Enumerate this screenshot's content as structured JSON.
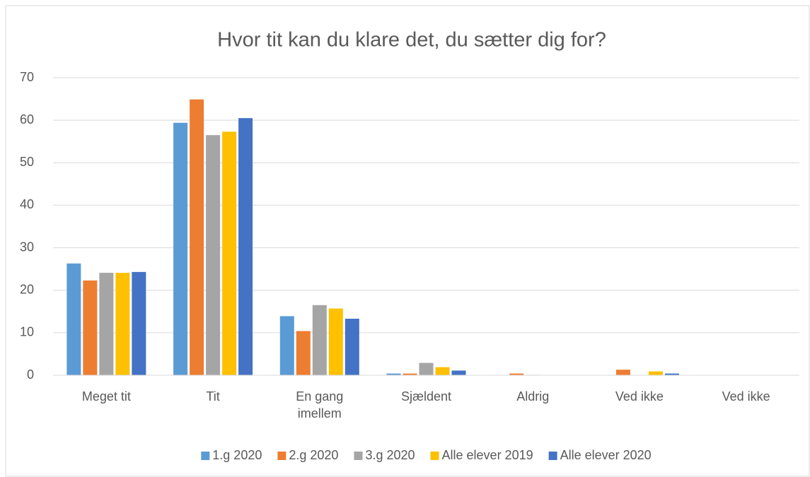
{
  "chart_data": {
    "type": "bar",
    "title": "Hvor tit kan du klare det, du sætter dig for?",
    "categories": [
      "Meget tit",
      "Tit",
      "En gang imellem",
      "Sjældent",
      "Aldrig",
      "Ved ikke",
      "Ved ikke"
    ],
    "series": [
      {
        "name": "1.g 2020",
        "color": "#5b9bd5",
        "values": [
          26.3,
          59.4,
          13.9,
          0.4,
          0,
          0,
          0
        ]
      },
      {
        "name": "2.g 2020",
        "color": "#ed7d31",
        "values": [
          22.3,
          64.9,
          10.4,
          0.4,
          0.4,
          1.3,
          0
        ]
      },
      {
        "name": "3.g 2020",
        "color": "#a5a5a5",
        "values": [
          24.1,
          56.5,
          16.5,
          2.9,
          0.1,
          0,
          0
        ]
      },
      {
        "name": "Alle elever 2019",
        "color": "#ffc000",
        "values": [
          24.1,
          57.3,
          15.7,
          1.9,
          0,
          0.9,
          0
        ]
      },
      {
        "name": "Alle elever 2020",
        "color": "#4472c4",
        "values": [
          24.3,
          60.5,
          13.3,
          1.1,
          0,
          0.4,
          0
        ]
      }
    ],
    "ylim": [
      0,
      70
    ],
    "yticks": [
      0,
      10,
      20,
      30,
      40,
      50,
      60,
      70
    ],
    "grid": true,
    "legend": "bottom"
  }
}
